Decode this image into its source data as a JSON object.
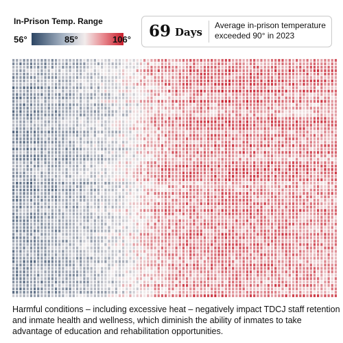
{
  "legend": {
    "title": "In-Prison Temp. Range",
    "min_label": "56°",
    "mid_label": "85°",
    "max_label": "106°",
    "colors": {
      "cold": "#2c4563",
      "mid": "#f2ecec",
      "hot": "#c81e2c"
    }
  },
  "callout": {
    "value": "69",
    "unit": "Days",
    "text": "Average in-prison temperature exceeded 90° in 2023"
  },
  "caption": "Harmful conditions – including excessive heat – negatively impact TDCJ staff retention and inmate health and wellness, which diminish the ability of inmates to take advantage of education and rehabilitation opportunities.",
  "chart_data": {
    "type": "heatmap",
    "title": "",
    "xlabel": "",
    "ylabel": "",
    "color_range": [
      56,
      106
    ],
    "color_mid": 85,
    "rows": 70,
    "cols": 92,
    "seed": 7,
    "profile": {
      "x": [
        0.0,
        0.15,
        0.3,
        0.38,
        0.44,
        0.55,
        0.7,
        0.85,
        1.0
      ],
      "temp": [
        70,
        74,
        80,
        86,
        92,
        95,
        96,
        95,
        94
      ]
    }
  }
}
